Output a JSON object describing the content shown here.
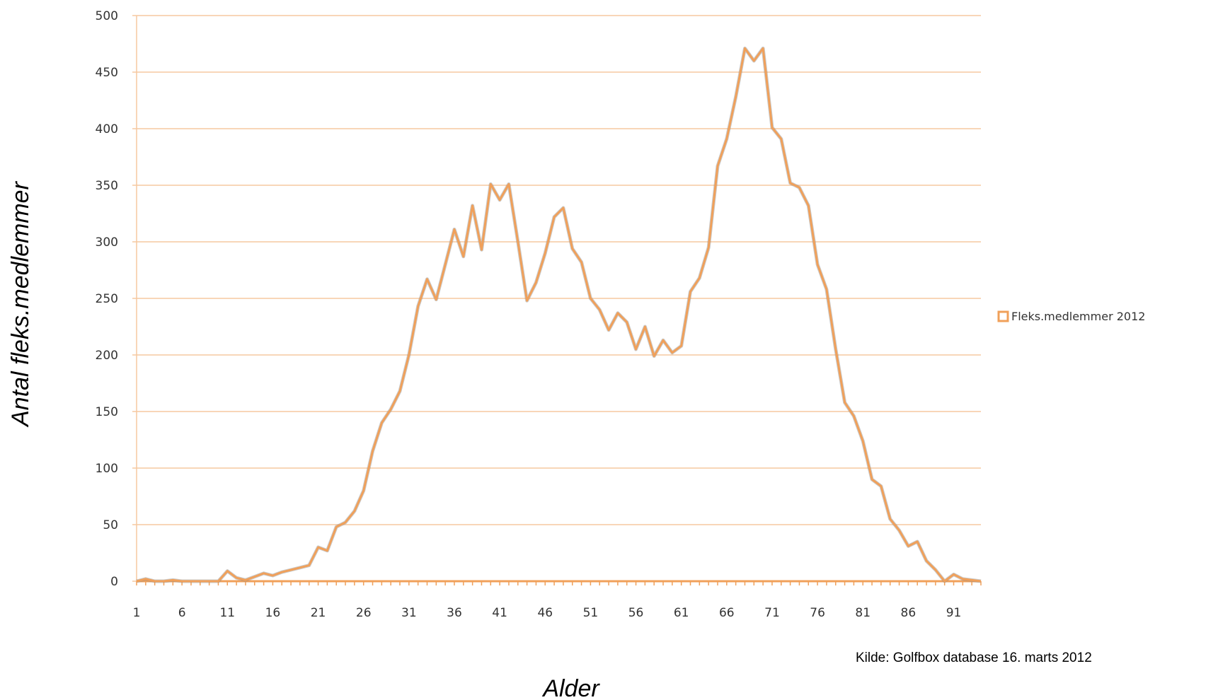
{
  "chart_data": {
    "type": "line",
    "xlabel": "Alder",
    "ylabel": "Antal fleks.medlemmer",
    "ylim": [
      0,
      500
    ],
    "yticks": [
      0,
      50,
      100,
      150,
      200,
      250,
      300,
      350,
      400,
      450,
      500
    ],
    "xticks": [
      1,
      6,
      11,
      16,
      21,
      26,
      31,
      36,
      41,
      46,
      51,
      56,
      61,
      66,
      71,
      76,
      81,
      86,
      91
    ],
    "xlim": [
      1,
      94
    ],
    "grid": true,
    "legend_position": "right",
    "source_note": "Kilde: Golfbox database 16. marts 2012",
    "colors": {
      "series": "#f0a05a",
      "grid": "#f5c9a0",
      "axis": "#f0a05a"
    },
    "x": [
      1,
      2,
      3,
      4,
      5,
      6,
      7,
      8,
      9,
      10,
      11,
      12,
      13,
      14,
      15,
      16,
      17,
      18,
      19,
      20,
      21,
      22,
      23,
      24,
      25,
      26,
      27,
      28,
      29,
      30,
      31,
      32,
      33,
      34,
      35,
      36,
      37,
      38,
      39,
      40,
      41,
      42,
      43,
      44,
      45,
      46,
      47,
      48,
      49,
      50,
      51,
      52,
      53,
      54,
      55,
      56,
      57,
      58,
      59,
      60,
      61,
      62,
      63,
      64,
      65,
      66,
      67,
      68,
      69,
      70,
      71,
      72,
      73,
      74,
      75,
      76,
      77,
      78,
      79,
      80,
      81,
      82,
      83,
      84,
      85,
      86,
      87,
      88,
      89,
      90,
      91,
      92,
      93,
      94
    ],
    "series": [
      {
        "name": "Fleks.medlemmer 2012",
        "values": [
          0,
          2,
          0,
          0,
          1,
          0,
          0,
          0,
          0,
          0,
          9,
          3,
          1,
          4,
          7,
          5,
          8,
          10,
          12,
          14,
          30,
          27,
          48,
          52,
          62,
          80,
          115,
          140,
          152,
          168,
          200,
          243,
          267,
          249,
          280,
          311,
          287,
          332,
          293,
          351,
          337,
          351,
          300,
          248,
          264,
          290,
          322,
          330,
          294,
          282,
          250,
          240,
          222,
          237,
          229,
          205,
          225,
          199,
          213,
          202,
          208,
          256,
          268,
          295,
          367,
          391,
          428,
          471,
          460,
          471,
          401,
          391,
          352,
          348,
          332,
          280,
          258,
          205,
          158,
          146,
          124,
          90,
          84,
          55,
          45,
          31,
          35,
          18,
          10,
          0,
          6,
          2,
          1,
          0
        ]
      }
    ]
  }
}
